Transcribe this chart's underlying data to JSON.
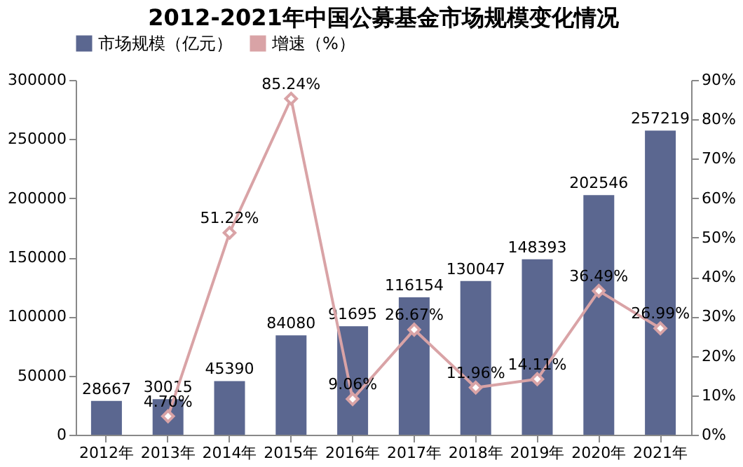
{
  "chart_data": {
    "type": "bar",
    "title": "2012-2021年中国公募基金市场规模变化情况",
    "categories": [
      "2012年",
      "2013年",
      "2014年",
      "2015年",
      "2016年",
      "2017年",
      "2018年",
      "2019年",
      "2020年",
      "2021年"
    ],
    "series": [
      {
        "name": "市场规模（亿元）",
        "color": "#5b6790",
        "values": [
          28667,
          30015,
          45390,
          84080,
          91695,
          116154,
          130047,
          148393,
          202546,
          257219
        ]
      },
      {
        "name": "增速（%）",
        "type": "line",
        "axis": "y2",
        "color": "#d9a3a6",
        "marker": "diamond",
        "values": [
          null,
          4.7,
          51.22,
          85.24,
          9.06,
          26.67,
          11.96,
          14.11,
          36.49,
          26.99
        ],
        "value_labels": [
          null,
          "4.70%",
          "51.22%",
          "85.24%",
          "9.06%",
          "26.67%",
          "11.96%",
          "14.11%",
          "36.49%",
          "26.99%"
        ]
      }
    ],
    "data_labels": true,
    "ylim": [
      0,
      300000
    ],
    "yticks": [
      0,
      50000,
      100000,
      150000,
      200000,
      250000,
      300000
    ],
    "y2lim": [
      0,
      90
    ],
    "y2ticks": [
      {
        "value": 0,
        "label": "0%"
      },
      {
        "value": 10,
        "label": "10%"
      },
      {
        "value": 20,
        "label": "20%"
      },
      {
        "value": 30,
        "label": "30%"
      },
      {
        "value": 40,
        "label": "40%"
      },
      {
        "value": 50,
        "label": "50%"
      },
      {
        "value": 60,
        "label": "60%"
      },
      {
        "value": 70,
        "label": "70%"
      },
      {
        "value": 80,
        "label": "80%"
      },
      {
        "value": 90,
        "label": "90%"
      }
    ],
    "grid": false,
    "legend": "top"
  }
}
